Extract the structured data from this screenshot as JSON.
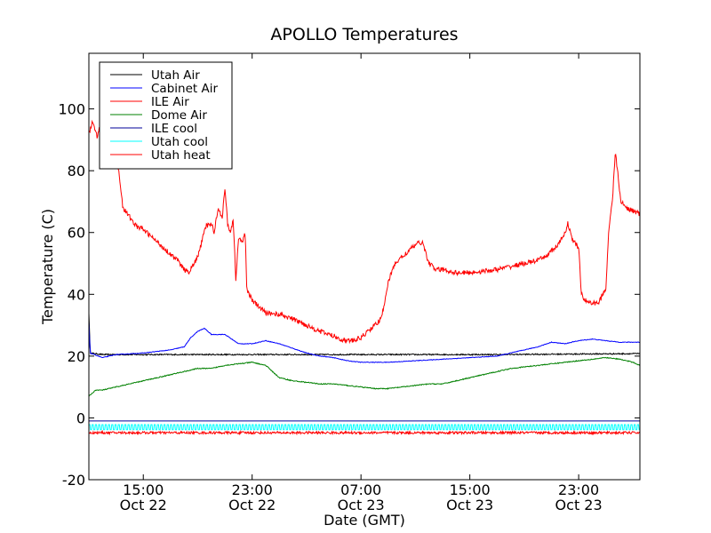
{
  "chart_data": {
    "type": "line",
    "title": "APOLLO Temperatures",
    "xlabel": "Date (GMT)",
    "ylabel": "Temperature (C)",
    "ylim": [
      -20,
      118
    ],
    "xlim_hours": [
      0,
      40.5
    ],
    "yticks": [
      -20,
      0,
      20,
      40,
      60,
      80,
      100
    ],
    "xticks": [
      {
        "hour": 4,
        "time": "15:00",
        "date": "Oct 22"
      },
      {
        "hour": 12,
        "time": "23:00",
        "date": "Oct 22"
      },
      {
        "hour": 20,
        "time": "07:00",
        "date": "Oct 23"
      },
      {
        "hour": 28,
        "time": "15:00",
        "date": "Oct 23"
      },
      {
        "hour": 36,
        "time": "23:00",
        "date": "Oct 23"
      }
    ],
    "legend_position": "top-left",
    "series": [
      {
        "name": "Utah Air",
        "color": "#000000",
        "noise": 0.4,
        "points": [
          [
            0,
            34
          ],
          [
            0.1,
            21
          ],
          [
            1,
            20.5
          ],
          [
            10,
            20.5
          ],
          [
            20,
            20.5
          ],
          [
            30,
            20.5
          ],
          [
            40.5,
            20.8
          ]
        ]
      },
      {
        "name": "Cabinet Air",
        "color": "#0000ff",
        "noise": 0.2,
        "points": [
          [
            0,
            31
          ],
          [
            0.1,
            21
          ],
          [
            1,
            19.5
          ],
          [
            2,
            20.5
          ],
          [
            4,
            21
          ],
          [
            6,
            22
          ],
          [
            7,
            23
          ],
          [
            7.5,
            26
          ],
          [
            8,
            28
          ],
          [
            8.5,
            29
          ],
          [
            9,
            27
          ],
          [
            10,
            27
          ],
          [
            11,
            24
          ],
          [
            12,
            24
          ],
          [
            13,
            25
          ],
          [
            14,
            24
          ],
          [
            16,
            21
          ],
          [
            17,
            20
          ],
          [
            18,
            19.5
          ],
          [
            19,
            18.5
          ],
          [
            20,
            18
          ],
          [
            22,
            18
          ],
          [
            24,
            18.5
          ],
          [
            26,
            19
          ],
          [
            28,
            19.5
          ],
          [
            30,
            20
          ],
          [
            32,
            22
          ],
          [
            33,
            23
          ],
          [
            34,
            24.5
          ],
          [
            35,
            24
          ],
          [
            36,
            25
          ],
          [
            37,
            25.5
          ],
          [
            38,
            25
          ],
          [
            39,
            24.5
          ],
          [
            40.5,
            24.5
          ]
        ]
      },
      {
        "name": "ILE Air",
        "color": "#ff0000",
        "noise": 0.8,
        "points": [
          [
            0,
            -4.8
          ],
          [
            40.5,
            -4.8
          ]
        ]
      },
      {
        "name": "Dome Air",
        "color": "#008000",
        "noise": 0.3,
        "points": [
          [
            0,
            7
          ],
          [
            0.5,
            9
          ],
          [
            1,
            9
          ],
          [
            2,
            10
          ],
          [
            3,
            11
          ],
          [
            4,
            12
          ],
          [
            5,
            13
          ],
          [
            6,
            14
          ],
          [
            7,
            15
          ],
          [
            8,
            16
          ],
          [
            9,
            16
          ],
          [
            10,
            17
          ],
          [
            11,
            17.5
          ],
          [
            12,
            18
          ],
          [
            13,
            17
          ],
          [
            14,
            13
          ],
          [
            15,
            12
          ],
          [
            16,
            11.5
          ],
          [
            17,
            11
          ],
          [
            18,
            11
          ],
          [
            19,
            10.5
          ],
          [
            20,
            10
          ],
          [
            21,
            9.5
          ],
          [
            22,
            9.5
          ],
          [
            23,
            10
          ],
          [
            24,
            10.5
          ],
          [
            25,
            11
          ],
          [
            26,
            11
          ],
          [
            27,
            12
          ],
          [
            28,
            13
          ],
          [
            29,
            14
          ],
          [
            30,
            15
          ],
          [
            31,
            16
          ],
          [
            32,
            16.5
          ],
          [
            33,
            17
          ],
          [
            34,
            17.5
          ],
          [
            35,
            18
          ],
          [
            36,
            18.5
          ],
          [
            37,
            19
          ],
          [
            38,
            19.5
          ],
          [
            39,
            19
          ],
          [
            40,
            18
          ],
          [
            40.5,
            17
          ]
        ]
      },
      {
        "name": "ILE cool",
        "color": "#000099",
        "noise": 0,
        "points": [
          [
            0,
            -1
          ],
          [
            40.5,
            -1
          ]
        ]
      },
      {
        "name": "Utah cool",
        "color": "#00ffff",
        "noise": 1.2,
        "square": true,
        "points": [
          [
            0,
            -3
          ],
          [
            40.5,
            -3
          ]
        ]
      },
      {
        "name": "Utah heat",
        "color": "#ff0000",
        "noise": 1.6,
        "points": [
          [
            0,
            92
          ],
          [
            0.3,
            96
          ],
          [
            0.6,
            91
          ],
          [
            1,
            97
          ],
          [
            1.5,
            99
          ],
          [
            2.2,
            80
          ],
          [
            2.5,
            68
          ],
          [
            3,
            65
          ],
          [
            3.5,
            62
          ],
          [
            4,
            61
          ],
          [
            4.5,
            59
          ],
          [
            5,
            57
          ],
          [
            5.5,
            55
          ],
          [
            6,
            53
          ],
          [
            6.5,
            51
          ],
          [
            7,
            48
          ],
          [
            7.3,
            47
          ],
          [
            7.6,
            49
          ],
          [
            8,
            52
          ],
          [
            8.3,
            57
          ],
          [
            8.6,
            62
          ],
          [
            9,
            63
          ],
          [
            9.2,
            60
          ],
          [
            9.5,
            68
          ],
          [
            9.8,
            65
          ],
          [
            10,
            74
          ],
          [
            10.2,
            63
          ],
          [
            10.4,
            60
          ],
          [
            10.6,
            64
          ],
          [
            10.7,
            55
          ],
          [
            10.8,
            45
          ],
          [
            11,
            58
          ],
          [
            11.3,
            57
          ],
          [
            11.5,
            60
          ],
          [
            11.6,
            42
          ],
          [
            12,
            38
          ],
          [
            12.5,
            36
          ],
          [
            13,
            34
          ],
          [
            14,
            33.5
          ],
          [
            15,
            32
          ],
          [
            16,
            30
          ],
          [
            17,
            28
          ],
          [
            18,
            26.5
          ],
          [
            18.5,
            25.5
          ],
          [
            19,
            25
          ],
          [
            19.5,
            25
          ],
          [
            20,
            26
          ],
          [
            20.5,
            28
          ],
          [
            21,
            30
          ],
          [
            21.5,
            32
          ],
          [
            22,
            44
          ],
          [
            22.5,
            50
          ],
          [
            23,
            52
          ],
          [
            23.5,
            54
          ],
          [
            24,
            56
          ],
          [
            24.5,
            57
          ],
          [
            25,
            50
          ],
          [
            25.5,
            48
          ],
          [
            26,
            48
          ],
          [
            27,
            47
          ],
          [
            28,
            47
          ],
          [
            29,
            47.5
          ],
          [
            30,
            48
          ],
          [
            31,
            49
          ],
          [
            32,
            50
          ],
          [
            33,
            51
          ],
          [
            33.5,
            52
          ],
          [
            34,
            54
          ],
          [
            34.5,
            56
          ],
          [
            35,
            60
          ],
          [
            35.2,
            63
          ],
          [
            35.5,
            58
          ],
          [
            36,
            55
          ],
          [
            36.2,
            40
          ],
          [
            36.5,
            38
          ],
          [
            37,
            37
          ],
          [
            37.5,
            37.5
          ],
          [
            38,
            42
          ],
          [
            38.2,
            60
          ],
          [
            38.5,
            72
          ],
          [
            38.7,
            86
          ],
          [
            38.9,
            78
          ],
          [
            39.1,
            70
          ],
          [
            39.5,
            68
          ],
          [
            40,
            67
          ],
          [
            40.5,
            66
          ]
        ]
      }
    ]
  }
}
